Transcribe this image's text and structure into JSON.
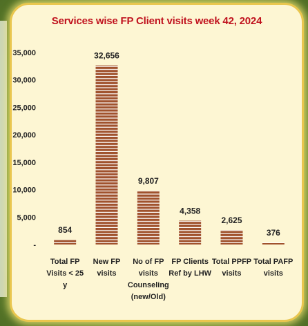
{
  "chart_data": {
    "type": "bar",
    "title": "Services wise FP Client visits week 42, 2024",
    "categories": [
      [
        "Total FP",
        "Visits < 25",
        "y"
      ],
      [
        "New FP",
        "visits"
      ],
      [
        "No of FP",
        "visits",
        "Counseling",
        "(new/Old)"
      ],
      [
        "FP Clients",
        "Ref by LHW"
      ],
      [
        "Total PPFP",
        "visits"
      ],
      [
        "Total PAFP",
        "visits"
      ]
    ],
    "values": [
      854,
      32656,
      9807,
      4358,
      2625,
      376
    ],
    "value_labels": [
      "854",
      "32,656",
      "9,807",
      "4,358",
      "2,625",
      "376"
    ],
    "ylim": [
      0,
      35000
    ],
    "yticks": [
      0,
      5000,
      10000,
      15000,
      20000,
      25000,
      30000,
      35000
    ],
    "ytick_labels": [
      "-",
      "5,000",
      "10,000",
      "15,000",
      "20,000",
      "25,000",
      "30,000",
      "35,000"
    ],
    "bar_color": "#a0522d",
    "stripe_color": "#ffffff",
    "title_color": "#c0121e",
    "grid": false,
    "legend": "none"
  }
}
